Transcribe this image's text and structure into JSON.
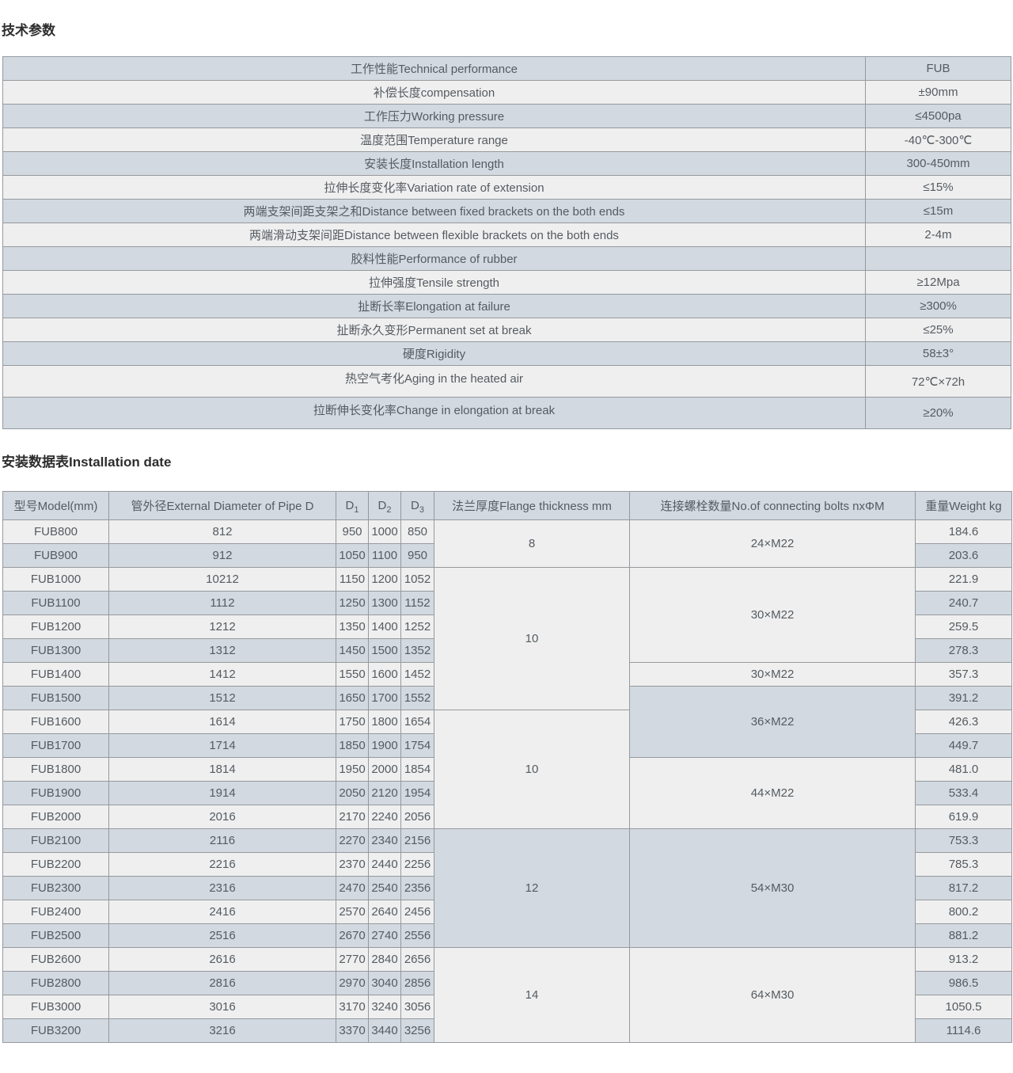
{
  "sections": {
    "tech_title": "技术参数",
    "install_title": "安装数据表Installation date"
  },
  "colors": {
    "row_blue": "#d2d9e0",
    "row_light": "#efefef",
    "border": "#96999e",
    "text": "#555b61"
  },
  "tech_table": {
    "rows": [
      {
        "label": "工作性能Technical performance",
        "value": "FUB"
      },
      {
        "label": "补偿长度compensation",
        "value": "±90mm"
      },
      {
        "label": "工作压力Working pressure",
        "value": "≤4500pa"
      },
      {
        "label": "温度范围Temperature range",
        "value": "-40℃-300℃"
      },
      {
        "label": "安装长度Installation length",
        "value": "300-450mm"
      },
      {
        "label": "拉伸长度变化率Variation rate of extension",
        "value": "≤15%"
      },
      {
        "label": "两端支架间距支架之和Distance between fixed brackets on the both ends",
        "value": "≤15m"
      },
      {
        "label": "两端滑动支架间距Distance between flexible brackets on the both ends",
        "value": "2-4m"
      },
      {
        "label": "胶料性能Performance of rubber",
        "value": ""
      },
      {
        "label": "拉伸强度Tensile strength",
        "value": "≥12Mpa"
      },
      {
        "label": "扯断长率Elongation at failure",
        "value": "≥300%"
      },
      {
        "label": "扯断永久变形Permanent set at break",
        "value": "≤25%"
      },
      {
        "label": "硬度Rigidity",
        "value": "58±3°"
      },
      {
        "label": "热空气考化Aging in the heated air",
        "value": "72℃×72h",
        "tall": true
      },
      {
        "label": "拉断伸长变化率Change in elongation at break",
        "value": "≥20%",
        "tall": true
      }
    ]
  },
  "install_table": {
    "headers": {
      "model": "型号Model(mm)",
      "diameter": "管外径External Diameter of Pipe D",
      "d_cols": [
        {
          "base": "D",
          "sub": "1"
        },
        {
          "base": "D",
          "sub": "2"
        },
        {
          "base": "D",
          "sub": "3"
        }
      ],
      "flange": "法兰厚度Flange thickness mm",
      "bolts": "连接螺栓数量No.of connecting bolts nxΦM",
      "weight": "重量Weight kg"
    },
    "rows": [
      {
        "model": "FUB800",
        "diameter": "812",
        "d1": "950",
        "d2": "1000",
        "d3": "850",
        "weight": "184.6"
      },
      {
        "model": "FUB900",
        "diameter": "912",
        "d1": "1050",
        "d2": "1100",
        "d3": "950",
        "weight": "203.6"
      },
      {
        "model": "FUB1000",
        "diameter": "10212",
        "d1": "1150",
        "d2": "1200",
        "d3": "1052",
        "weight": "221.9"
      },
      {
        "model": "FUB1100",
        "diameter": "1112",
        "d1": "1250",
        "d2": "1300",
        "d3": "1152",
        "weight": "240.7"
      },
      {
        "model": "FUB1200",
        "diameter": "1212",
        "d1": "1350",
        "d2": "1400",
        "d3": "1252",
        "weight": "259.5"
      },
      {
        "model": "FUB1300",
        "diameter": "1312",
        "d1": "1450",
        "d2": "1500",
        "d3": "1352",
        "weight": "278.3"
      },
      {
        "model": "FUB1400",
        "diameter": "1412",
        "d1": "1550",
        "d2": "1600",
        "d3": "1452",
        "weight": "357.3"
      },
      {
        "model": "FUB1500",
        "diameter": "1512",
        "d1": "1650",
        "d2": "1700",
        "d3": "1552",
        "weight": "391.2"
      },
      {
        "model": "FUB1600",
        "diameter": "1614",
        "d1": "1750",
        "d2": "1800",
        "d3": "1654",
        "weight": "426.3"
      },
      {
        "model": "FUB1700",
        "diameter": "1714",
        "d1": "1850",
        "d2": "1900",
        "d3": "1754",
        "weight": "449.7"
      },
      {
        "model": "FUB1800",
        "diameter": "1814",
        "d1": "1950",
        "d2": "2000",
        "d3": "1854",
        "weight": "481.0"
      },
      {
        "model": "FUB1900",
        "diameter": "1914",
        "d1": "2050",
        "d2": "2120",
        "d3": "1954",
        "weight": "533.4"
      },
      {
        "model": "FUB2000",
        "diameter": "2016",
        "d1": "2170",
        "d2": "2240",
        "d3": "2056",
        "weight": "619.9"
      },
      {
        "model": "FUB2100",
        "diameter": "2116",
        "d1": "2270",
        "d2": "2340",
        "d3": "2156",
        "weight": "753.3"
      },
      {
        "model": "FUB2200",
        "diameter": "2216",
        "d1": "2370",
        "d2": "2440",
        "d3": "2256",
        "weight": "785.3"
      },
      {
        "model": "FUB2300",
        "diameter": "2316",
        "d1": "2470",
        "d2": "2540",
        "d3": "2356",
        "weight": "817.2"
      },
      {
        "model": "FUB2400",
        "diameter": "2416",
        "d1": "2570",
        "d2": "2640",
        "d3": "2456",
        "weight": "800.2"
      },
      {
        "model": "FUB2500",
        "diameter": "2516",
        "d1": "2670",
        "d2": "2740",
        "d3": "2556",
        "weight": "881.2"
      },
      {
        "model": "FUB2600",
        "diameter": "2616",
        "d1": "2770",
        "d2": "2840",
        "d3": "2656",
        "weight": "913.2"
      },
      {
        "model": "FUB2800",
        "diameter": "2816",
        "d1": "2970",
        "d2": "3040",
        "d3": "2856",
        "weight": "986.5"
      },
      {
        "model": "FUB3000",
        "diameter": "3016",
        "d1": "3170",
        "d2": "3240",
        "d3": "3056",
        "weight": "1050.5"
      },
      {
        "model": "FUB3200",
        "diameter": "3216",
        "d1": "3370",
        "d2": "3440",
        "d3": "3256",
        "weight": "1114.6"
      }
    ],
    "flange_groups": [
      {
        "start": 0,
        "span": 2,
        "value": "8"
      },
      {
        "start": 2,
        "span": 6,
        "value": "10"
      },
      {
        "start": 8,
        "span": 5,
        "value": "10"
      },
      {
        "start": 13,
        "span": 5,
        "value": "12"
      },
      {
        "start": 18,
        "span": 4,
        "value": "14"
      }
    ],
    "bolt_groups": [
      {
        "start": 0,
        "span": 2,
        "value": "24×M22"
      },
      {
        "start": 2,
        "span": 4,
        "value": "30×M22"
      },
      {
        "start": 6,
        "span": 1,
        "value": "30×M22"
      },
      {
        "start": 7,
        "span": 3,
        "value": "36×M22"
      },
      {
        "start": 10,
        "span": 3,
        "value": "44×M22"
      },
      {
        "start": 13,
        "span": 5,
        "value": "54×M30"
      },
      {
        "start": 18,
        "span": 4,
        "value": "64×M30"
      }
    ]
  }
}
